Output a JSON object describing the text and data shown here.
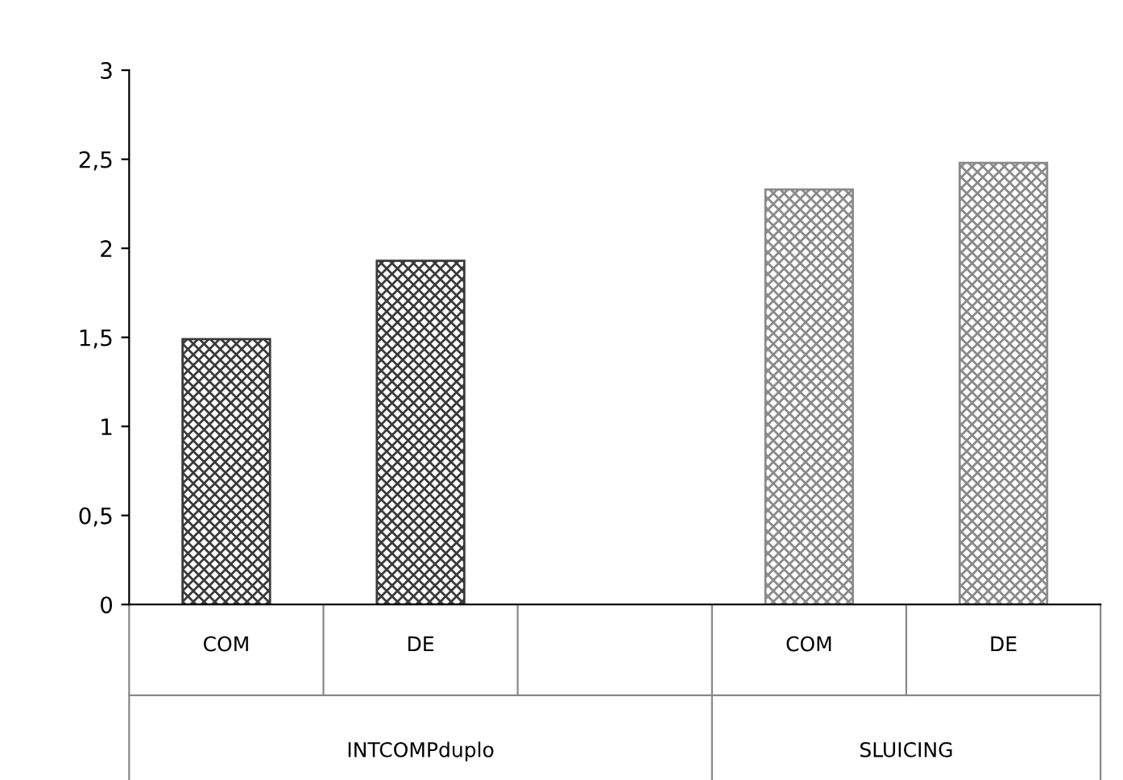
{
  "chart_data": {
    "type": "bar",
    "categories": [
      "COM",
      "DE",
      null,
      "COM",
      "DE"
    ],
    "values": [
      1.49,
      1.93,
      null,
      2.33,
      2.48
    ],
    "colors": [
      "#3a3a3a",
      "#3a3a3a",
      "#3a3a3a",
      "#8a8a8a",
      "#8a8a8a"
    ],
    "annotations": [
      "INTCOMPduplo",
      "SLUICING"
    ],
    "ylim": [
      0,
      3
    ],
    "yticks": [
      0,
      {
        "value": 0.5,
        "label": "0,5"
      },
      1,
      {
        "value": 1.5,
        "label": "1,5"
      },
      2,
      {
        "value": 2.5,
        "label": "2,5"
      },
      3
    ],
    "grid": false,
    "legend": false
  }
}
